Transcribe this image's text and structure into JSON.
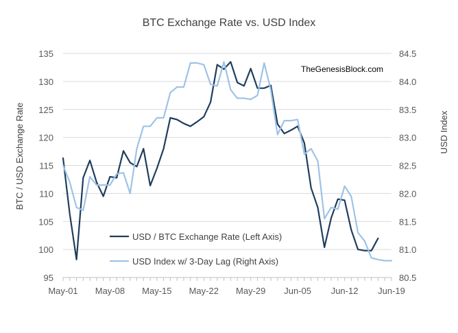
{
  "chart_data": {
    "type": "line",
    "title": "BTC Exchange Rate vs. USD Index",
    "watermark": "TheGenesisBlock.com",
    "ylabel_left": "BTC / USD Exchange Rate",
    "ylabel_right": "USD Index",
    "xlabel": "",
    "x_ticks": [
      "May-01",
      "May-08",
      "May-15",
      "May-22",
      "May-29",
      "Jun-05",
      "Jun-12",
      "Jun-19"
    ],
    "x_range": [
      0,
      49
    ],
    "ylim_left": [
      95,
      135
    ],
    "y_ticks_left": [
      "95",
      "100",
      "105",
      "110",
      "115",
      "120",
      "125",
      "130",
      "135"
    ],
    "ylim_right": [
      80.5,
      84.5
    ],
    "y_ticks_right": [
      "80.5",
      "81.0",
      "81.5",
      "82.0",
      "82.5",
      "83.0",
      "83.5",
      "84.0",
      "84.5"
    ],
    "grid": "horizontal",
    "legend_position": "lower-left",
    "series": [
      {
        "name": "USD / BTC Exchange Rate (Left Axis)",
        "axis": "left",
        "color": "#1f3d5c",
        "x": [
          0,
          1,
          2,
          3,
          4,
          5,
          6,
          7,
          8,
          9,
          10,
          11,
          12,
          13,
          14,
          15,
          16,
          17,
          18,
          19,
          20,
          21,
          22,
          23,
          24,
          25,
          26,
          27,
          28,
          29,
          30,
          31,
          32,
          33,
          34,
          35,
          36,
          37,
          38,
          39,
          40,
          41,
          42,
          43,
          44,
          45,
          46,
          47,
          48
        ],
        "values": [
          116.3,
          106.3,
          98.2,
          112.8,
          115.9,
          112.0,
          109.5,
          113.0,
          112.8,
          117.6,
          115.5,
          114.8,
          118.0,
          111.4,
          114.5,
          118.0,
          123.5,
          123.2,
          122.5,
          122.0,
          122.8,
          123.7,
          126.3,
          133.0,
          132.2,
          133.5,
          129.8,
          129.2,
          132.3,
          128.8,
          128.8,
          129.3,
          122.4,
          120.7,
          121.3,
          122.0,
          119.0,
          111.0,
          107.5,
          100.4,
          105.6,
          109.0,
          108.8,
          103.5,
          100.0,
          99.8,
          99.8,
          102.0,
          null
        ],
        "x_end": 47
      },
      {
        "name": "USD Index w/ 3-Day Lag (Right Axis)",
        "axis": "right",
        "color": "#9dc3e6",
        "x": [
          0,
          1,
          2,
          3,
          4,
          5,
          6,
          7,
          8,
          9,
          10,
          11,
          12,
          13,
          14,
          15,
          16,
          17,
          18,
          19,
          20,
          21,
          22,
          23,
          24,
          25,
          26,
          27,
          28,
          29,
          30,
          31,
          32,
          33,
          34,
          35,
          36,
          37,
          38,
          39,
          40,
          41,
          42,
          43,
          44,
          45,
          46,
          47,
          48,
          49
        ],
        "values": [
          82.5,
          82.2,
          81.75,
          81.7,
          82.3,
          82.15,
          82.15,
          82.15,
          82.35,
          82.37,
          82.0,
          82.8,
          83.2,
          83.2,
          83.35,
          83.35,
          83.8,
          83.9,
          83.9,
          84.33,
          84.33,
          84.3,
          83.95,
          83.92,
          84.35,
          83.85,
          83.7,
          83.7,
          83.68,
          83.75,
          84.33,
          83.85,
          83.05,
          83.3,
          83.3,
          83.32,
          82.7,
          82.8,
          82.58,
          81.55,
          81.75,
          81.72,
          82.13,
          81.95,
          81.3,
          81.15,
          80.85,
          80.82,
          80.8,
          80.8
        ]
      }
    ]
  }
}
